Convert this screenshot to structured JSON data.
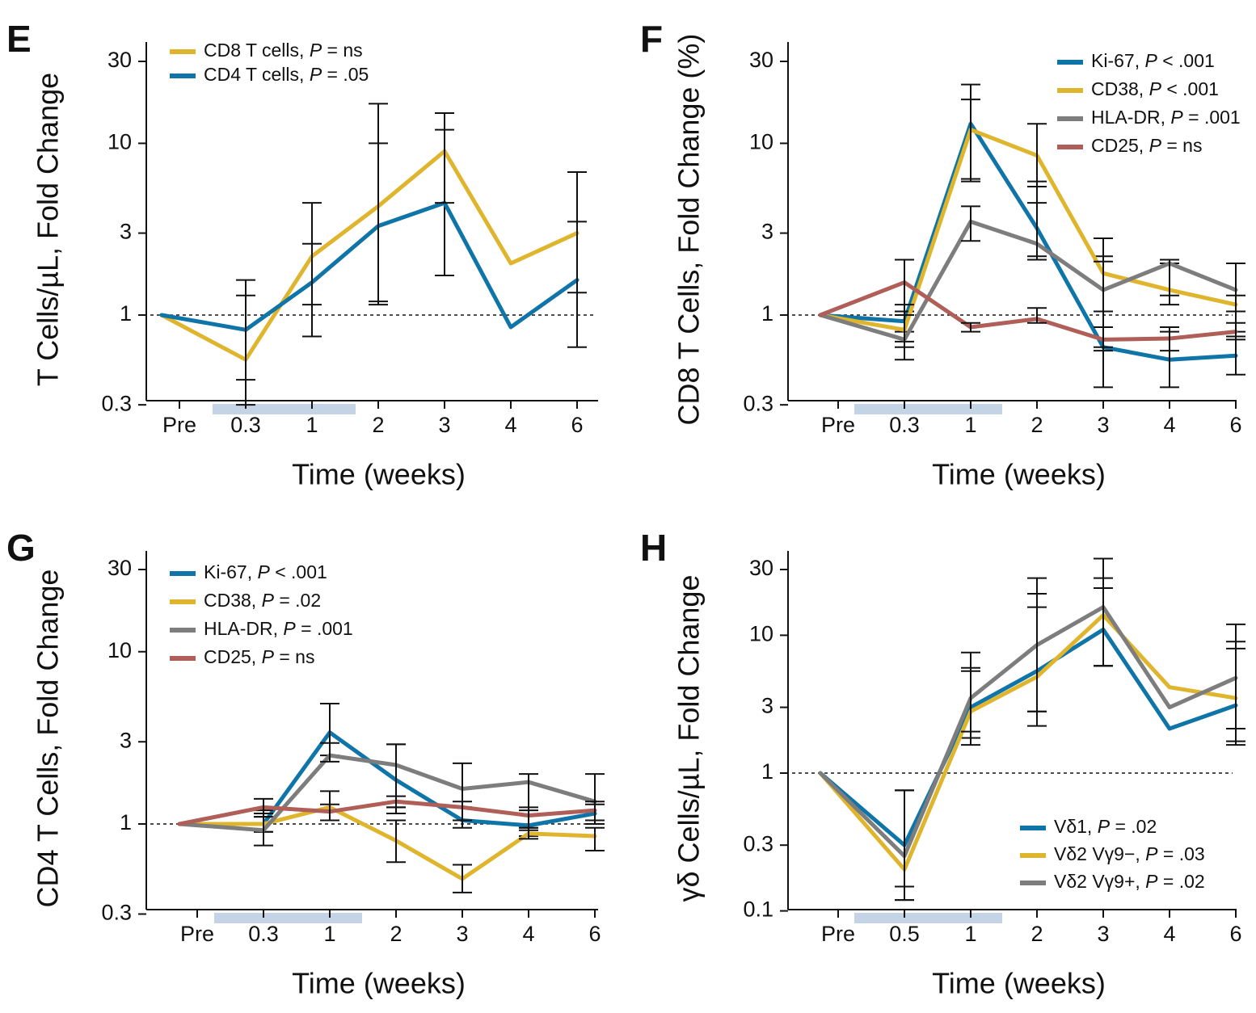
{
  "colors": {
    "blue": "#0f75a8",
    "gold": "#e0b52e",
    "gray": "#7d7d7d",
    "red": "#b05e58",
    "band": "#c4d4e6",
    "axis": "#111111"
  },
  "chart_data": [
    {
      "panel": "E",
      "type": "line",
      "ylabel": "T Cells/µL, Fold Change",
      "xlabel": "Time (weeks)",
      "y_scale": "log",
      "ylim": [
        0.3,
        40
      ],
      "yticks": [
        0.3,
        1,
        3,
        10,
        30
      ],
      "ytick_labels": [
        "0.3",
        "1",
        "3",
        "10",
        "30"
      ],
      "categories": [
        "Pre",
        "0.3",
        "1",
        "2",
        "3",
        "4",
        "6"
      ],
      "shaded_band": {
        "from": 0.5,
        "to": 2.7
      },
      "legend_position": "top-left",
      "series": [
        {
          "label": "CD8 T cells, ",
          "p": "P",
          "ptext": " = ns",
          "color": "gold",
          "x": [
            0,
            1,
            2,
            3,
            4,
            5,
            6
          ],
          "values": [
            1.0,
            0.55,
            2.2,
            4.3,
            9.0,
            2.0,
            3.0
          ],
          "err_low": [
            null,
            0.42,
            0.75,
            1.2,
            1.7,
            null,
            1.35
          ],
          "err_high": [
            null,
            1.6,
            4.5,
            17,
            15,
            null,
            6.8
          ]
        },
        {
          "label": "CD4 T cells, ",
          "p": "P",
          "ptext": " = .05",
          "color": "blue",
          "x": [
            0,
            1,
            2,
            3,
            4,
            5,
            6
          ],
          "values": [
            1.0,
            0.82,
            1.55,
            3.3,
            4.5,
            0.85,
            1.6
          ],
          "err_low": [
            null,
            0.3,
            1.15,
            1.15,
            4.5,
            null,
            0.65
          ],
          "err_high": [
            null,
            1.3,
            2.6,
            10,
            12,
            null,
            3.5
          ]
        }
      ]
    },
    {
      "panel": "F",
      "type": "line",
      "ylabel": "CD8 T Cells, Fold Change (%)",
      "xlabel": "Time (weeks)",
      "y_scale": "log",
      "ylim": [
        0.3,
        40
      ],
      "yticks": [
        0.3,
        1,
        3,
        10,
        30
      ],
      "ytick_labels": [
        "0.3",
        "1",
        "3",
        "10",
        "30"
      ],
      "categories": [
        "Pre",
        "0.3",
        "1",
        "2",
        "3",
        "4",
        "6"
      ],
      "shaded_band": {
        "from": 0.5,
        "to": 2.7
      },
      "legend_position": "top-right",
      "series": [
        {
          "label": "Ki-67, ",
          "p": "P",
          "ptext": " < .001",
          "color": "blue",
          "x": [
            0,
            1,
            2,
            3,
            4,
            5,
            6
          ],
          "values": [
            1.0,
            0.92,
            13,
            3.2,
            0.65,
            0.55,
            0.58
          ],
          "err_low": [
            null,
            0.8,
            6.0,
            2.2,
            0.38,
            0.38,
            0.45
          ],
          "err_high": [
            null,
            1.05,
            18,
            6.0,
            2.2,
            0.8,
            0.75
          ]
        },
        {
          "label": "CD38, ",
          "p": "P",
          "ptext": " < .001",
          "color": "gold",
          "x": [
            0,
            1,
            2,
            3,
            4,
            5,
            6
          ],
          "values": [
            1.0,
            0.82,
            12,
            8.5,
            1.75,
            1.4,
            1.15
          ],
          "err_low": [
            null,
            0.7,
            6.2,
            4.5,
            1.05,
            1.15,
            1.05
          ],
          "err_high": [
            null,
            1.0,
            22,
            13,
            2.8,
            2.0,
            1.3
          ]
        },
        {
          "label": "HLA-DR, ",
          "p": "P",
          "ptext": " = .001",
          "color": "gray",
          "x": [
            0,
            1,
            2,
            3,
            4,
            5,
            6
          ],
          "values": [
            1.0,
            0.72,
            3.5,
            2.6,
            1.4,
            2.0,
            1.4
          ],
          "err_low": [
            null,
            0.55,
            2.7,
            2.1,
            0.62,
            1.3,
            0.8
          ],
          "err_high": [
            null,
            1.15,
            4.3,
            5.6,
            2.05,
            2.1,
            2.0
          ]
        },
        {
          "label": "CD25, ",
          "p": "P",
          "ptext": " = ns",
          "color": "red",
          "x": [
            0,
            1,
            2,
            3,
            4,
            5,
            6
          ],
          "values": [
            1.0,
            1.55,
            0.85,
            0.95,
            0.72,
            0.73,
            0.8
          ],
          "err_low": [
            null,
            0.65,
            0.8,
            0.9,
            0.65,
            0.62,
            0.72
          ],
          "err_high": [
            null,
            2.1,
            0.9,
            1.1,
            0.85,
            0.85,
            0.9
          ]
        }
      ]
    },
    {
      "panel": "G",
      "type": "line",
      "ylabel": "CD4 T Cells, Fold Change",
      "xlabel": "Time (weeks)",
      "y_scale": "log",
      "ylim": [
        0.3,
        40
      ],
      "yticks": [
        0.3,
        1,
        3,
        10,
        30
      ],
      "ytick_labels": [
        "0.3",
        "1",
        "3",
        "10",
        "30"
      ],
      "categories": [
        "Pre",
        "0.3",
        "1",
        "2",
        "3",
        "4",
        "6"
      ],
      "shaded_band": {
        "from": 0.5,
        "to": 2.8
      },
      "legend_position": "top-left",
      "series": [
        {
          "label": "Ki-67, ",
          "p": "P",
          "ptext": " < .001",
          "color": "blue",
          "x": [
            0,
            1,
            2,
            3,
            4,
            5,
            6
          ],
          "values": [
            1.0,
            1.0,
            3.4,
            1.8,
            1.05,
            0.98,
            1.15
          ],
          "err_low": [
            null,
            0.9,
            2.5,
            1.25,
            0.95,
            0.85,
            1.0
          ],
          "err_high": [
            null,
            1.1,
            5.0,
            2.9,
            1.25,
            1.2,
            1.3
          ]
        },
        {
          "label": "CD38, ",
          "p": "P",
          "ptext": " = .02",
          "color": "gold",
          "x": [
            0,
            1,
            2,
            3,
            4,
            5,
            6
          ],
          "values": [
            1.0,
            1.0,
            1.25,
            0.8,
            0.48,
            0.88,
            0.85
          ],
          "err_low": [
            null,
            0.9,
            1.05,
            0.6,
            0.4,
            0.82,
            0.7
          ],
          "err_high": [
            null,
            1.1,
            1.55,
            1.05,
            0.58,
            0.95,
            0.95
          ]
        },
        {
          "label": "HLA-DR, ",
          "p": "P",
          "ptext": " = .001",
          "color": "gray",
          "x": [
            0,
            1,
            2,
            3,
            4,
            5,
            6
          ],
          "values": [
            1.0,
            0.92,
            2.5,
            2.2,
            1.6,
            1.75,
            1.35
          ],
          "err_low": [
            null,
            0.75,
            2.3,
            1.15,
            1.25,
            0.92,
            1.05
          ],
          "err_high": [
            null,
            1.2,
            2.95,
            2.9,
            2.25,
            1.95,
            1.95
          ]
        },
        {
          "label": "CD25, ",
          "p": "P",
          "ptext": " = ns",
          "color": "red",
          "x": [
            0,
            1,
            2,
            3,
            4,
            5,
            6
          ],
          "values": [
            1.0,
            1.25,
            1.18,
            1.35,
            1.25,
            1.12,
            1.2
          ],
          "err_low": [
            null,
            1.15,
            1.05,
            1.25,
            1.05,
            0.95,
            1.05
          ],
          "err_high": [
            null,
            1.4,
            1.3,
            1.45,
            1.35,
            1.25,
            1.35
          ]
        }
      ]
    },
    {
      "panel": "H",
      "type": "line",
      "ylabel": "γδ Cells/µL, Fold Change",
      "xlabel": "Time (weeks)",
      "y_scale": "log",
      "ylim": [
        0.1,
        40
      ],
      "yticks": [
        0.1,
        0.3,
        1,
        3,
        10,
        30
      ],
      "ytick_labels": [
        "0.1",
        "0.3",
        "1",
        "3",
        "10",
        "30"
      ],
      "categories": [
        "Pre",
        "0.5",
        "1",
        "2",
        "3",
        "4",
        "6"
      ],
      "shaded_band": {
        "from": 0.5,
        "to": 2.7
      },
      "legend_position": "bottom-right",
      "series": [
        {
          "label": "Vδ1, ",
          "p": "P",
          "ptext": " = .02",
          "color": "blue",
          "x": [
            0,
            1,
            2,
            3,
            4,
            5,
            6
          ],
          "values": [
            1.0,
            0.3,
            3.0,
            5.5,
            11,
            2.1,
            3.1
          ],
          "err_low": [
            null,
            0.12,
            1.8,
            2.2,
            6.0,
            null,
            1.7
          ],
          "err_high": [
            null,
            0.75,
            5.8,
            16,
            22,
            null,
            8.0
          ]
        },
        {
          "label": "Vδ2 Vγ9−, ",
          "p": "P",
          "ptext": " = .03",
          "color": "gold",
          "x": [
            0,
            1,
            2,
            3,
            4,
            5,
            6
          ],
          "values": [
            1.0,
            0.2,
            2.8,
            5.0,
            14,
            4.2,
            3.5
          ],
          "err_low": [
            null,
            0.15,
            1.6,
            2.8,
            6.0,
            null,
            1.6
          ],
          "err_high": [
            null,
            0.75,
            5.5,
            20,
            26,
            null,
            9.0
          ]
        },
        {
          "label": "Vδ2 Vγ9+, ",
          "p": "P",
          "ptext": " = .02",
          "color": "gray",
          "x": [
            0,
            1,
            2,
            3,
            4,
            5,
            6
          ],
          "values": [
            1.0,
            0.25,
            3.5,
            8.5,
            16,
            3.0,
            4.9
          ],
          "err_low": [
            null,
            0.12,
            2.0,
            2.8,
            6.0,
            null,
            2.1
          ],
          "err_high": [
            null,
            0.75,
            7.5,
            26,
            36,
            null,
            12
          ]
        }
      ]
    }
  ]
}
